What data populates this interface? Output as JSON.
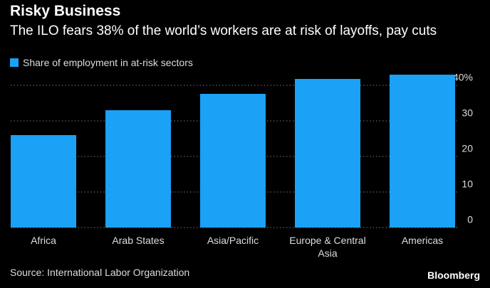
{
  "chart_data": {
    "type": "bar",
    "title": "Risky Business",
    "subtitle": "The ILO fears 38% of the world’s workers are at risk of layoffs, pay cuts",
    "categories": [
      "Africa",
      "Arab States",
      "Asia/Pacific",
      "Europe & Central Asia",
      "Americas"
    ],
    "series": [
      {
        "name": "Share of employment in at-risk sectors",
        "color": "#1ba1f5",
        "values": [
          26,
          33,
          37.6,
          41.8,
          43
        ]
      }
    ],
    "ylim": [
      0,
      44
    ],
    "yticks": [
      0,
      10,
      20,
      30,
      {
        "value": 40,
        "label": "40%"
      }
    ],
    "grid": true,
    "source": "Source: International Labor Organization",
    "brand": "Bloomberg"
  }
}
